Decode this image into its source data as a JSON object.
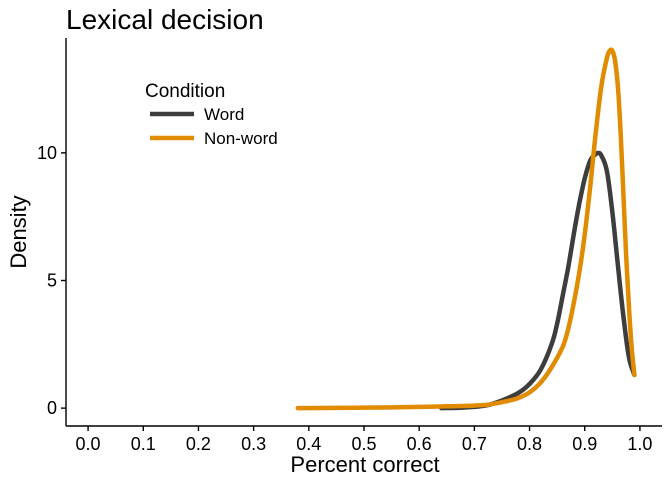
{
  "chart_data": {
    "type": "line",
    "title": "Lexical decision",
    "xlabel": "Percent correct",
    "ylabel": "Density",
    "xlim": [
      -0.04,
      1.04
    ],
    "ylim": [
      -0.7,
      14.5
    ],
    "x_ticks": [
      0.0,
      0.1,
      0.2,
      0.3,
      0.4,
      0.5,
      0.6,
      0.7,
      0.8,
      0.9,
      1.0
    ],
    "x_tick_labels": [
      "0.0",
      "0.1",
      "0.2",
      "0.3",
      "0.4",
      "0.5",
      "0.6",
      "0.7",
      "0.8",
      "0.9",
      "1.0"
    ],
    "y_ticks": [
      0,
      5,
      10
    ],
    "y_tick_labels": [
      "0",
      "5",
      "10"
    ],
    "grid": false,
    "legend": {
      "title": "Condition",
      "placement": "top-left"
    },
    "series": [
      {
        "name": "Word",
        "color": "#3d3d3d",
        "x": [
          0.64,
          0.68,
          0.72,
          0.75,
          0.78,
          0.8,
          0.82,
          0.84,
          0.85,
          0.86,
          0.87,
          0.88,
          0.89,
          0.9,
          0.91,
          0.92,
          0.925,
          0.93,
          0.94,
          0.95,
          0.96,
          0.97,
          0.98,
          0.99
        ],
        "y": [
          0.0,
          0.02,
          0.1,
          0.3,
          0.6,
          0.95,
          1.5,
          2.5,
          3.3,
          4.4,
          5.5,
          6.8,
          8.0,
          9.0,
          9.7,
          9.95,
          10.0,
          9.9,
          9.3,
          7.7,
          5.6,
          3.6,
          2.0,
          1.3
        ]
      },
      {
        "name": "Non-word",
        "color": "#e08b00",
        "x": [
          0.38,
          0.45,
          0.5,
          0.55,
          0.6,
          0.65,
          0.7,
          0.73,
          0.76,
          0.78,
          0.8,
          0.82,
          0.84,
          0.86,
          0.87,
          0.88,
          0.89,
          0.9,
          0.91,
          0.92,
          0.93,
          0.94,
          0.945,
          0.95,
          0.955,
          0.96,
          0.965,
          0.97,
          0.975,
          0.98,
          0.985,
          0.99
        ],
        "y": [
          0.0,
          0.01,
          0.02,
          0.03,
          0.05,
          0.07,
          0.1,
          0.15,
          0.28,
          0.4,
          0.62,
          1.0,
          1.6,
          2.4,
          3.1,
          4.1,
          5.3,
          6.8,
          8.7,
          10.8,
          12.6,
          13.7,
          14.0,
          14.0,
          13.6,
          12.6,
          10.8,
          8.4,
          6.0,
          4.0,
          2.4,
          1.3
        ]
      }
    ]
  }
}
